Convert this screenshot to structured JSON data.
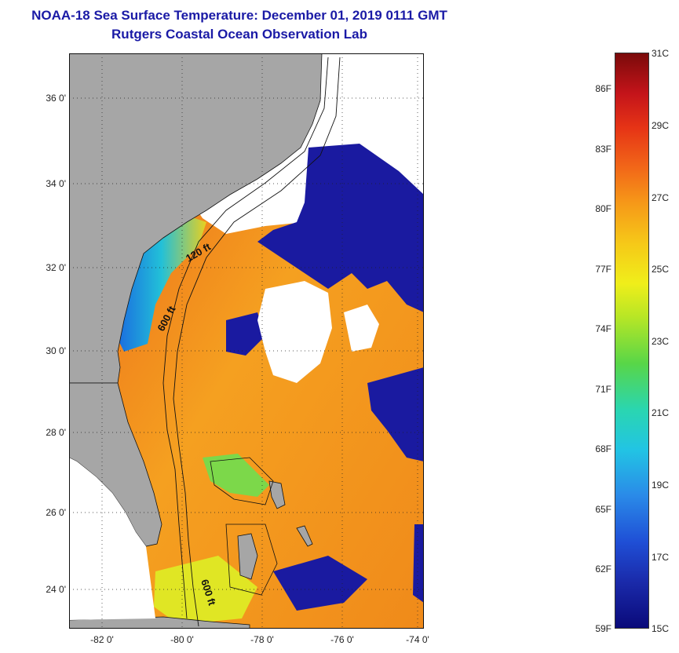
{
  "header": {
    "title": "NOAA-18 Sea Surface Temperature:  December 01, 2019 0111 GMT",
    "subtitle": "Rutgers Coastal Ocean Observation Lab"
  },
  "map": {
    "lat_labels": [
      "36 0'",
      "34 0'",
      "32 0'",
      "30 0'",
      "28 0'",
      "26 0'",
      "24 0'"
    ],
    "lon_labels": [
      "-82 0'",
      "-80 0'",
      "-78 0'",
      "-76 0'",
      "-74 0'"
    ],
    "contour_labels": [
      "120 ft",
      "600 ft",
      "600 ft"
    ],
    "colors": {
      "land": "#a6a6a6",
      "cloud": "#ffffff",
      "warm": "#f26a1c",
      "cold": "#1a1aa0"
    }
  },
  "colorbar": {
    "celsius_labels": [
      "31C",
      "29C",
      "27C",
      "25C",
      "23C",
      "21C",
      "19C",
      "17C",
      "15C"
    ],
    "fahrenheit_labels": [
      "86F",
      "83F",
      "80F",
      "77F",
      "74F",
      "71F",
      "68F",
      "65F",
      "62F",
      "59F"
    ]
  }
}
